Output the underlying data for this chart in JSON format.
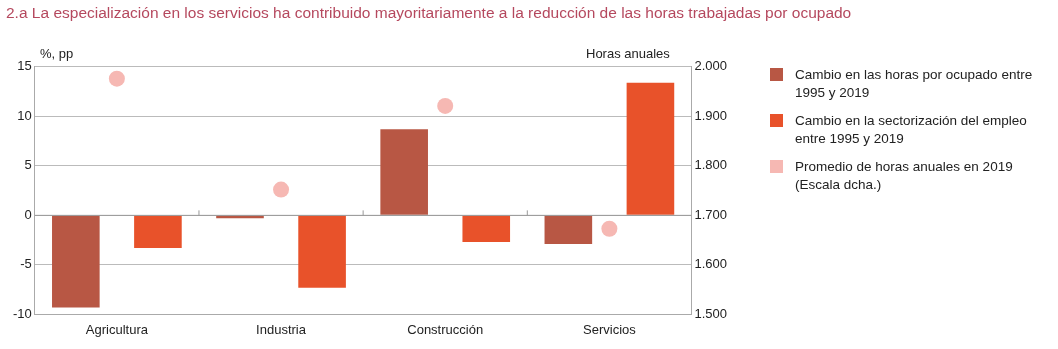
{
  "chart_data": {
    "type": "bar",
    "title": "2.a  La especialización en los servicios ha contribuido mayoritariamente a la reducción de las horas trabajadas por ocupado",
    "ylabel": "%, pp",
    "y2label": "Horas anuales",
    "categories": [
      "Agricultura",
      "Industria",
      "Construcción",
      "Servicios"
    ],
    "series": [
      {
        "name": "Cambio en las horas por ocupado entre 1995 y 2019",
        "color": "#b85744",
        "values": [
          -9.3,
          -0.3,
          8.7,
          -2.9
        ]
      },
      {
        "name": "Cambio en la sectorización del empleo entre 1995 y 2019",
        "color": "#e8522a",
        "values": [
          -3.3,
          -7.3,
          -2.7,
          13.4
        ]
      },
      {
        "name": "Promedio de horas anuales en 2019 (Escala dcha.)",
        "color": "#f6b8b3",
        "type": "scatter",
        "axis": "y2",
        "x": [
          "Agricultura",
          "Industria",
          "Construcción",
          "Servicios"
        ],
        "values": [
          1976,
          1752,
          1921,
          1673
        ]
      }
    ],
    "ylim": [
      -10,
      15
    ],
    "yticks": [
      -10,
      -5,
      0,
      5,
      10,
      15
    ],
    "y2lim": [
      1500,
      2000
    ],
    "y2ticks": [
      {
        "value": 1500,
        "label": "1.500"
      },
      {
        "value": 1600,
        "label": "1.600"
      },
      {
        "value": 1700,
        "label": "1.700"
      },
      {
        "value": 1800,
        "label": "1.800"
      },
      {
        "value": 1900,
        "label": "1.900"
      },
      {
        "value": 2000,
        "label": "2.000"
      }
    ],
    "grid": "y",
    "legend": "right",
    "marker": "circle"
  }
}
